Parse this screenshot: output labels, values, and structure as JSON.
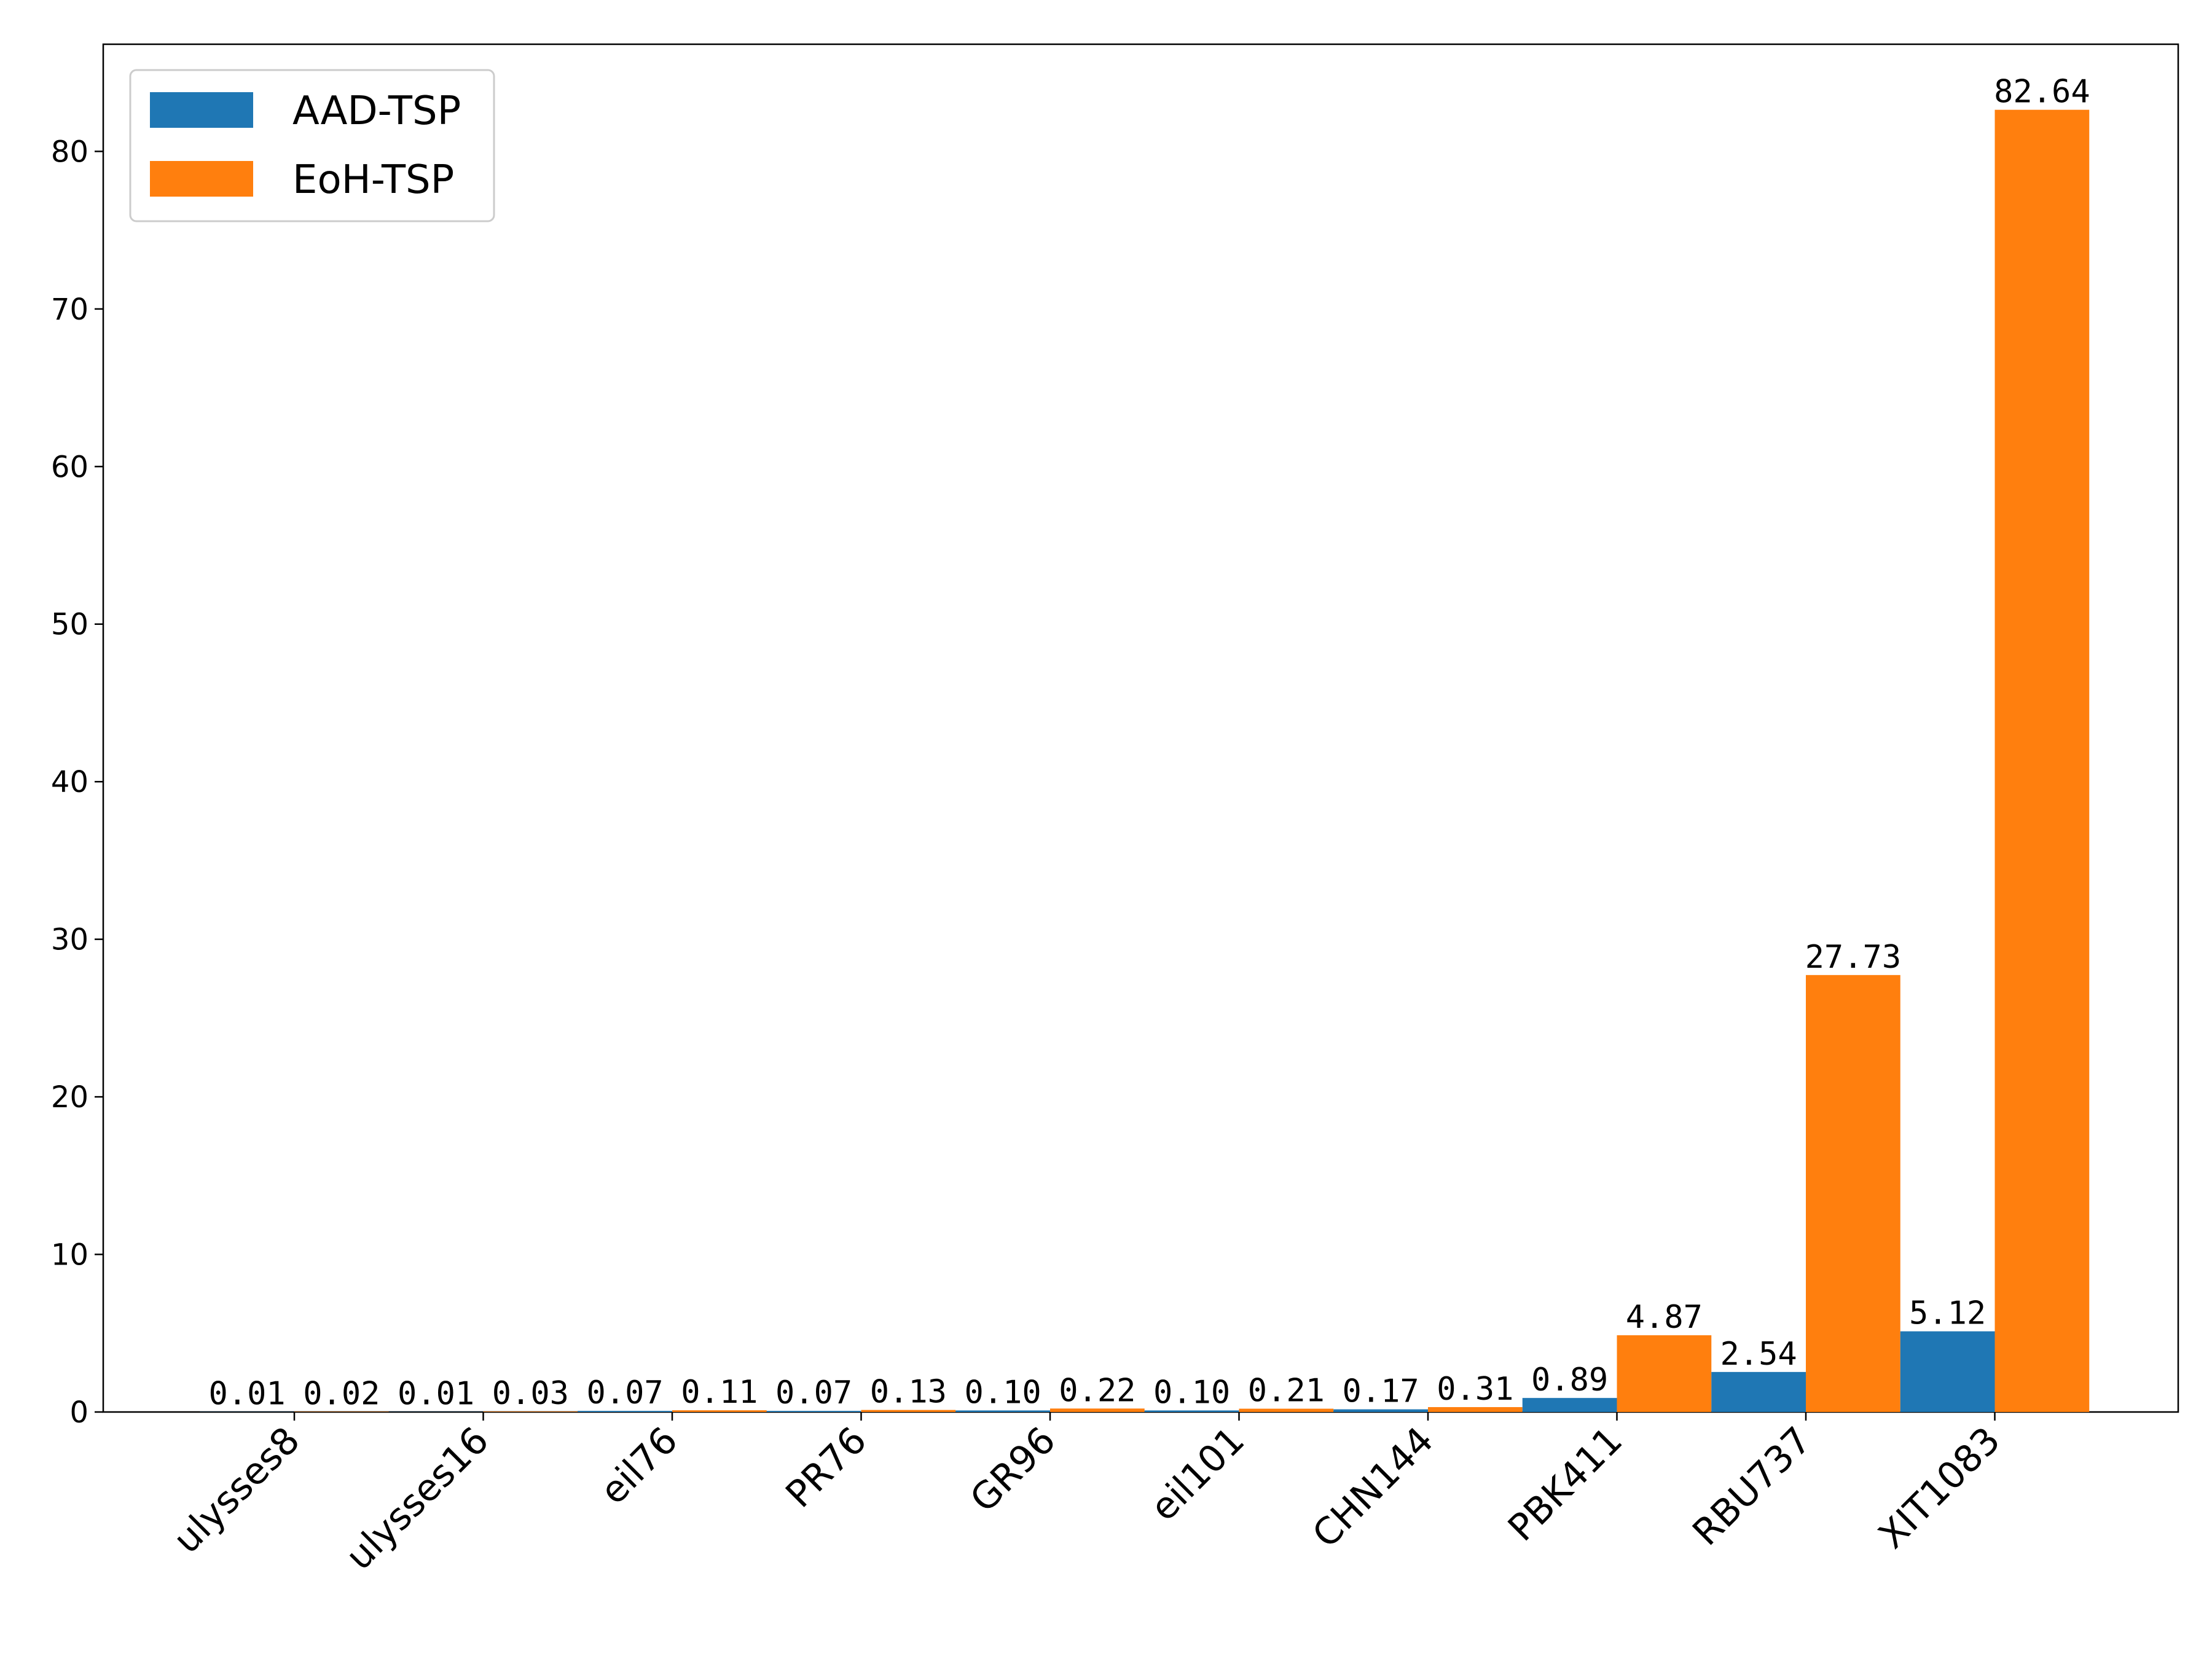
{
  "chart_data": {
    "type": "bar",
    "categories": [
      "ulysses8",
      "ulysses16",
      "eil76",
      "PR76",
      "GR96",
      "eil101",
      "CHN144",
      "PBK411",
      "RBU737",
      "XIT1083"
    ],
    "series": [
      {
        "name": "AAD-TSP",
        "color": "#1f77b4",
        "values": [
          0.01,
          0.01,
          0.07,
          0.07,
          0.1,
          0.1,
          0.17,
          0.89,
          2.54,
          5.12
        ],
        "labels": [
          "0.01",
          "0.01",
          "0.07",
          "0.07",
          "0.10",
          "0.10",
          "0.17",
          "0.89",
          "2.54",
          "5.12"
        ]
      },
      {
        "name": "EoH-TSP",
        "color": "#ff7f0e",
        "values": [
          0.02,
          0.03,
          0.11,
          0.13,
          0.22,
          0.21,
          0.31,
          4.87,
          27.73,
          82.64
        ],
        "labels": [
          "0.02",
          "0.03",
          "0.11",
          "0.13",
          "0.22",
          "0.21",
          "0.31",
          "4.87",
          "27.73",
          "82.64"
        ]
      }
    ],
    "yticks": [
      "0",
      "10",
      "20",
      "30",
      "40",
      "50",
      "60",
      "70",
      "80"
    ],
    "ylim": [
      0,
      86.8
    ],
    "xlabel": "",
    "ylabel": "",
    "legend_position": "top-left",
    "grid": false
  }
}
